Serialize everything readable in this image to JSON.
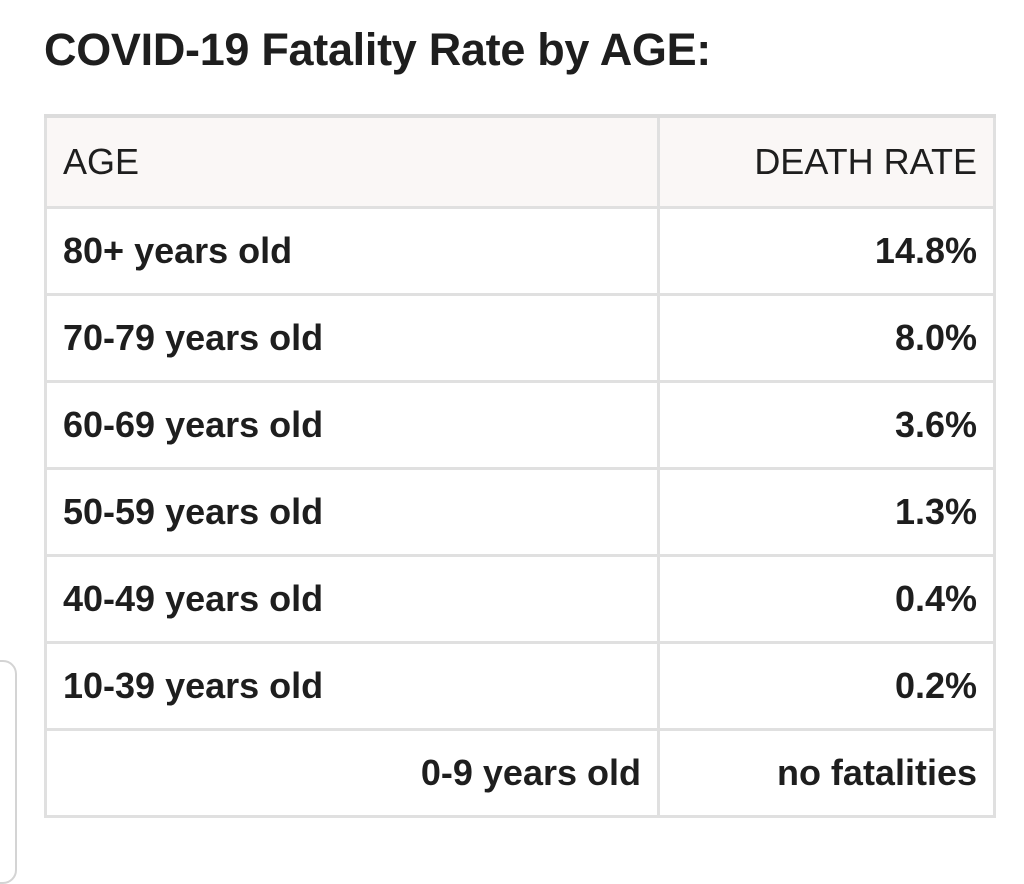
{
  "title": "COVID-19 Fatality Rate by AGE:",
  "table": {
    "headers": [
      "AGE",
      "DEATH RATE"
    ],
    "rows": [
      [
        "80+ years old",
        "14.8%"
      ],
      [
        "70-79 years old",
        "8.0%"
      ],
      [
        "60-69 years old",
        "3.6%"
      ],
      [
        "50-59 years old",
        "1.3%"
      ],
      [
        "40-49 years old",
        "0.4%"
      ],
      [
        "10-39 years old",
        "0.2%"
      ],
      [
        "0-9 years old",
        "no fatalities"
      ]
    ]
  },
  "colors": {
    "header_bg": "#faf7f6",
    "border": "#e0e0e0",
    "text": "#1e1e1e"
  }
}
